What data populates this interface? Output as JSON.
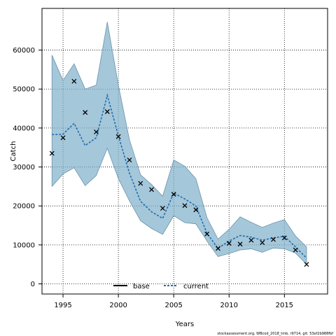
{
  "chart_data": {
    "type": "line",
    "xlabel": "Years",
    "ylabel": "Catch",
    "xlim": [
      1993.1,
      2018.9
    ],
    "ylim": [
      -2600,
      70700
    ],
    "x_ticks": [
      1995,
      2000,
      2005,
      2010,
      2015
    ],
    "y_ticks": [
      0,
      10000,
      20000,
      30000,
      40000,
      50000,
      60000
    ],
    "grid": true,
    "legend_position": "bottom-center",
    "years": [
      1994,
      1995,
      1996,
      1997,
      1998,
      1999,
      2000,
      2001,
      2002,
      2003,
      2004,
      2005,
      2006,
      2007,
      2008,
      2009,
      2010,
      2011,
      2012,
      2013,
      2014,
      2015,
      2016,
      2017
    ],
    "observed": [
      33500,
      37500,
      52000,
      44000,
      39000,
      44200,
      37800,
      31800,
      25800,
      24200,
      19400,
      23000,
      20100,
      19000,
      12800,
      9100,
      10400,
      10200,
      11200,
      10600,
      11400,
      11800,
      8700,
      5000
    ],
    "band_upper": [
      58700,
      52200,
      56500,
      50000,
      51000,
      67200,
      51000,
      37000,
      28000,
      25500,
      22500,
      31800,
      30200,
      27000,
      17000,
      11500,
      14000,
      17200,
      15800,
      14500,
      15600,
      16500,
      12300,
      9500
    ],
    "band_lower": [
      25000,
      28200,
      29800,
      25200,
      27800,
      34800,
      27000,
      21300,
      16200,
      14200,
      12700,
      17500,
      15700,
      15400,
      11000,
      7000,
      7800,
      8700,
      9000,
      8100,
      9200,
      9000,
      7900,
      5000
    ],
    "series": [
      {
        "name": "base",
        "values": [],
        "color": "#000000",
        "style": "solid"
      },
      {
        "name": "current",
        "values": [
          38300,
          38400,
          41200,
          35500,
          37500,
          48400,
          38000,
          28400,
          21200,
          18500,
          16800,
          23300,
          21800,
          20000,
          13000,
          9100,
          11000,
          12400,
          12000,
          11200,
          11800,
          12200,
          9500,
          6600
        ],
        "color": "#1f6fae",
        "style": "dashed"
      }
    ],
    "band_color": "#7fafcb",
    "band_edge_color": "#6b93ab",
    "marker": "x"
  },
  "footer": "stockassessment.org, WBcod_2018_tmb, r9714, git: 53ef2b988fbf"
}
